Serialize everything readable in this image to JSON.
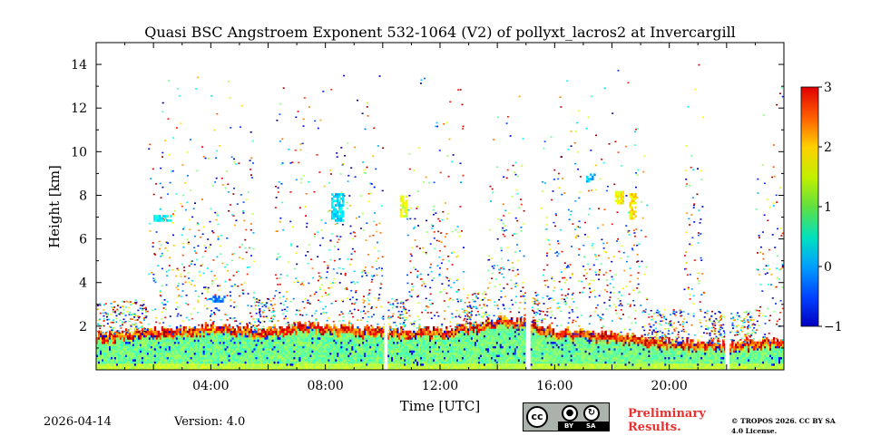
{
  "chart_data": {
    "type": "heatmap",
    "title": "Quasi BSC Angstroem Exponent 532-1064 (V2) of pollyxt_lacros2 at Invercargill",
    "xlabel": "Time [UTC]",
    "ylabel": "Height [km]",
    "xlim_hours": [
      0,
      24
    ],
    "ylim_km": [
      0,
      15
    ],
    "x_ticks": [
      {
        "value": 4,
        "label": "04:00"
      },
      {
        "value": 8,
        "label": "08:00"
      },
      {
        "value": 12,
        "label": "12:00"
      },
      {
        "value": 16,
        "label": "16:00"
      },
      {
        "value": 20,
        "label": "20:00"
      }
    ],
    "y_ticks": [
      {
        "value": 2,
        "label": "2"
      },
      {
        "value": 4,
        "label": "4"
      },
      {
        "value": 6,
        "label": "6"
      },
      {
        "value": 8,
        "label": "8"
      },
      {
        "value": 10,
        "label": "10"
      },
      {
        "value": 12,
        "label": "12"
      },
      {
        "value": 14,
        "label": "14"
      }
    ],
    "colorbar": {
      "colormap": "jet",
      "range": [
        -1,
        3
      ],
      "ticks": [
        {
          "value": 3,
          "label": "3"
        },
        {
          "value": 2,
          "label": "2"
        },
        {
          "value": 1,
          "label": "1"
        },
        {
          "value": 0,
          "label": "0"
        },
        {
          "value": -1,
          "label": "−1"
        }
      ]
    },
    "data_gaps_hours": [
      {
        "start": 10.05,
        "end": 10.15
      },
      {
        "start": 15.0,
        "end": 15.15
      },
      {
        "start": 21.95,
        "end": 22.1
      }
    ],
    "boundary_layer_top_km": [
      [
        0,
        1.6
      ],
      [
        2,
        1.8
      ],
      [
        4,
        2.0
      ],
      [
        6,
        1.8
      ],
      [
        7,
        2.1
      ],
      [
        8,
        2.0
      ],
      [
        9,
        1.9
      ],
      [
        10,
        1.8
      ],
      [
        12,
        1.8
      ],
      [
        13,
        2.0
      ],
      [
        14,
        2.3
      ],
      [
        15,
        2.2
      ],
      [
        16,
        1.8
      ],
      [
        18,
        1.6
      ],
      [
        20,
        1.3
      ],
      [
        22,
        1.2
      ],
      [
        24,
        1.4
      ]
    ],
    "cloud_layers": [
      {
        "t0": 8.2,
        "t1": 8.6,
        "h0": 6.8,
        "h1": 8.0,
        "value": 0.4
      },
      {
        "t0": 10.6,
        "t1": 10.8,
        "h0": 7.0,
        "h1": 7.9,
        "value": 1.4
      },
      {
        "t0": 18.1,
        "t1": 18.4,
        "h0": 7.6,
        "h1": 8.1,
        "value": 1.5
      },
      {
        "t0": 18.6,
        "t1": 18.8,
        "h0": 6.9,
        "h1": 8.0,
        "value": 1.6
      },
      {
        "t0": 17.1,
        "t1": 17.4,
        "h0": 8.6,
        "h1": 8.9,
        "value": 0.3
      },
      {
        "t0": 2.0,
        "t1": 2.6,
        "h0": 6.8,
        "h1": 7.0,
        "value": 0.5
      },
      {
        "t0": 4.0,
        "t1": 4.5,
        "h0": 3.1,
        "h1": 3.4,
        "value": 0.0
      }
    ]
  },
  "footer": {
    "date": "2026-04-14",
    "version": "Version: 4.0",
    "cc_label": "cc",
    "by_label": "BY",
    "sa_label": "SA",
    "preliminary": "Preliminary Results.",
    "copyright": "© TROPOS 2026. CC BY SA 4.0 License."
  }
}
